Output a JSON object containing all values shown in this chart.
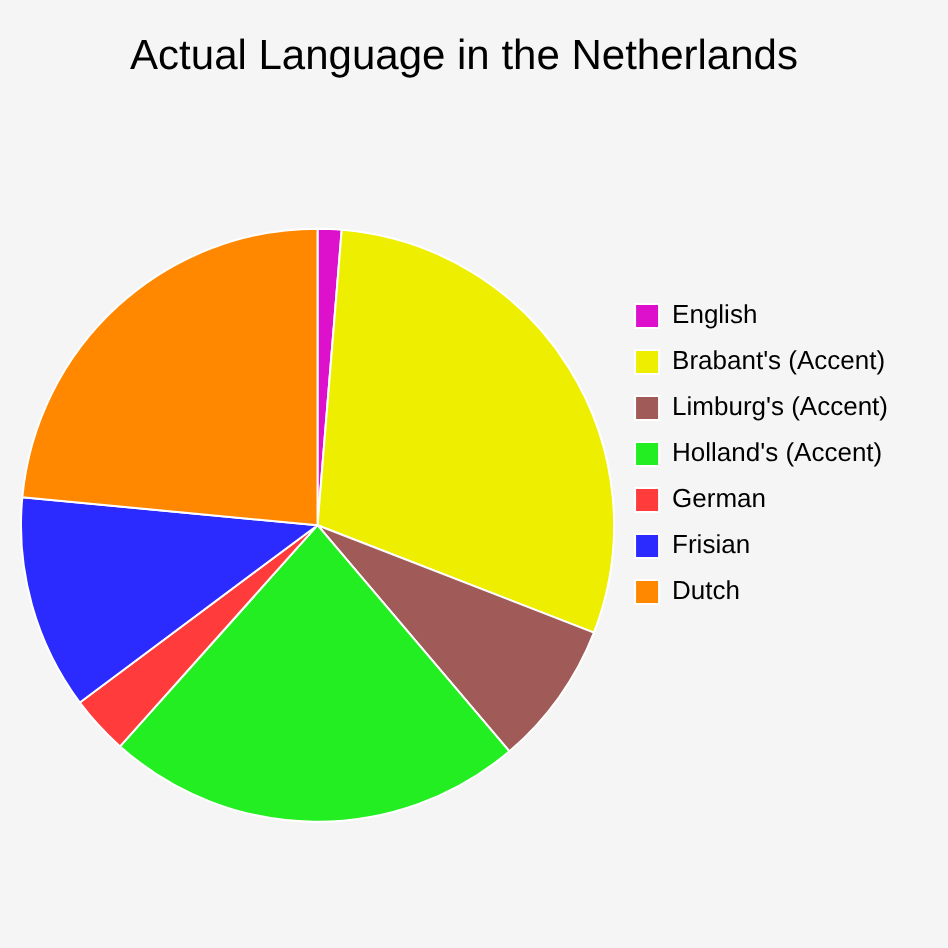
{
  "chart_data": {
    "type": "pie",
    "title": "Actual Language in the Netherlands",
    "categories": [
      "English",
      "Brabant's (Accent)",
      "Limburg's (Accent)",
      "Holland's (Accent)",
      "German",
      "Frisian",
      "Dutch"
    ],
    "values": [
      1.3,
      29.6,
      7.9,
      22.8,
      3.2,
      11.7,
      23.5
    ],
    "colors": [
      "#dd11cc",
      "#eeee00",
      "#a05a58",
      "#22ee22",
      "#ff3b3b",
      "#2b2bff",
      "#ff8800"
    ],
    "legend": "right"
  }
}
